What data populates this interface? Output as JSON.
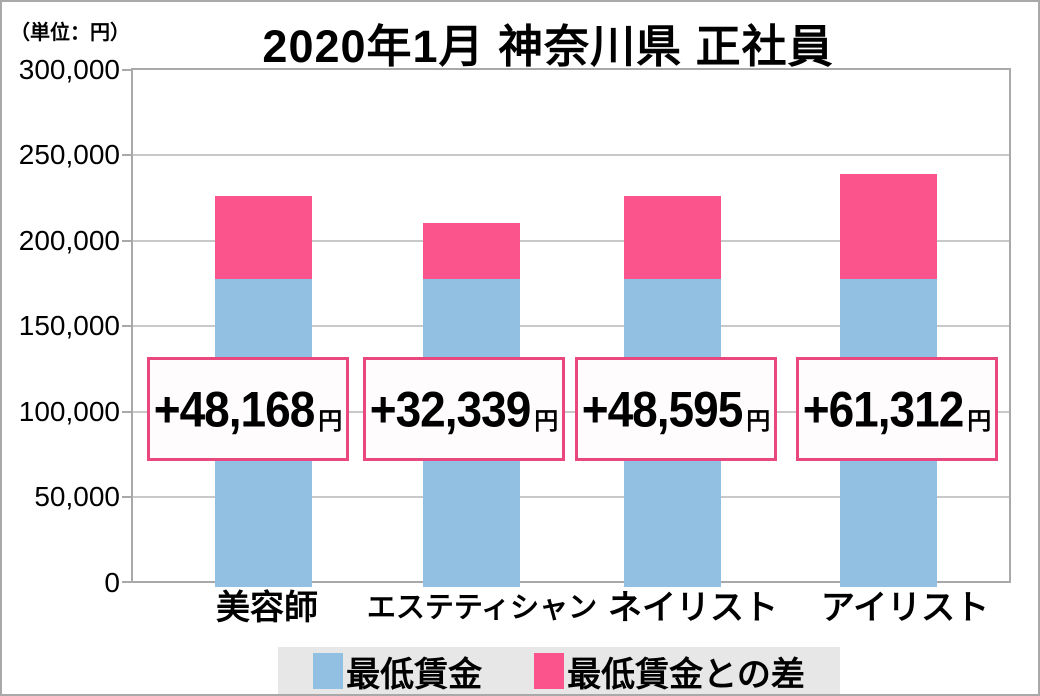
{
  "header": {
    "unit_note": "（単位：円）",
    "title": "2020年1月 神奈川県 正社員"
  },
  "chart_data": {
    "type": "bar",
    "stacked": true,
    "title": "2020年1月 神奈川県 正社員",
    "unit": "円",
    "categories": [
      "美容師",
      "エステティシャン",
      "ネイリスト",
      "アイリスト"
    ],
    "series": [
      {
        "name": "最低賃金",
        "color": "#92c0e2",
        "values": [
          177936,
          177936,
          177936,
          177936
        ]
      },
      {
        "name": "最低賃金との差",
        "color": "#fb538b",
        "values": [
          48168,
          32339,
          48595,
          61312
        ]
      }
    ],
    "totals": [
      226104,
      210275,
      226531,
      239248
    ],
    "bar_labels": [
      {
        "value": "+48,168",
        "unit": "円"
      },
      {
        "value": "+32,339",
        "unit": "円"
      },
      {
        "value": "+48,595",
        "unit": "円"
      },
      {
        "value": "+61,312",
        "unit": "円"
      }
    ],
    "ylim": [
      0,
      300000
    ],
    "ytick_interval": 50000,
    "yticks": [
      "300,000",
      "250,000",
      "200,000",
      "150,000",
      "100,000",
      "50,000",
      "0"
    ],
    "grid": "horizontal",
    "legend_position": "bottom"
  },
  "legend": {
    "items": [
      {
        "label": "最低賃金",
        "color": "#92c0e2"
      },
      {
        "label": "最低賃金との差",
        "color": "#fb538b"
      }
    ]
  },
  "colors": {
    "bar_blue": "#92c0e2",
    "bar_pink": "#fb538b",
    "label_box_border": "#e9487f",
    "gridline": "#c9c9c9",
    "plot_border": "#a9a9a9",
    "legend_bg": "#e7e7e7",
    "text": "#000000"
  }
}
